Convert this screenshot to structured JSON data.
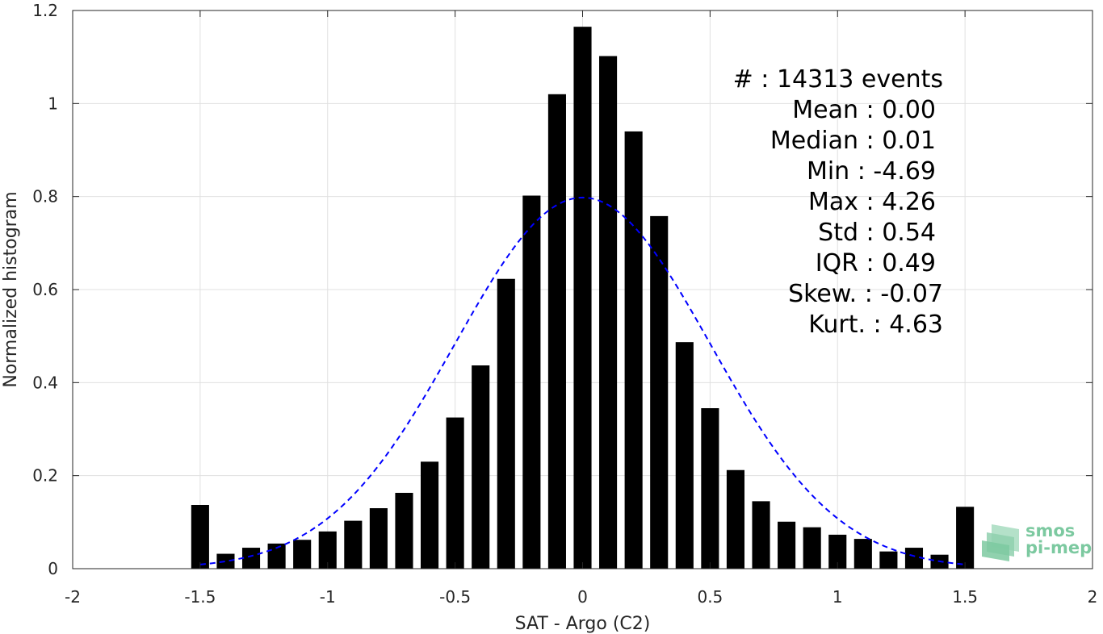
{
  "chart_data": {
    "type": "bar",
    "xlabel": "SAT - Argo (C2)",
    "ylabel": "Normalized histogram",
    "xlim": [
      -2,
      2
    ],
    "ylim": [
      0,
      1.2
    ],
    "xticks": [
      "-2",
      "-1.5",
      "-1",
      "-0.5",
      "0",
      "0.5",
      "1",
      "1.5",
      "2"
    ],
    "yticks": [
      "0",
      "0.2",
      "0.4",
      "0.6",
      "0.8",
      "1",
      "1.2"
    ],
    "grid": true,
    "bar_color": "#000000",
    "bins": {
      "x": [
        -1.5,
        -1.4,
        -1.3,
        -1.2,
        -1.1,
        -1.0,
        -0.9,
        -0.8,
        -0.7,
        -0.6,
        -0.5,
        -0.4,
        -0.3,
        -0.2,
        -0.1,
        0.0,
        0.1,
        0.2,
        0.3,
        0.4,
        0.5,
        0.6,
        0.7,
        0.8,
        0.9,
        1.0,
        1.1,
        1.2,
        1.3,
        1.4,
        1.5
      ],
      "values": [
        0.137,
        0.032,
        0.045,
        0.054,
        0.062,
        0.08,
        0.103,
        0.13,
        0.163,
        0.23,
        0.325,
        0.437,
        0.623,
        0.802,
        1.02,
        1.165,
        1.102,
        0.94,
        0.758,
        0.487,
        0.345,
        0.212,
        0.145,
        0.101,
        0.089,
        0.073,
        0.064,
        0.037,
        0.045,
        0.03,
        0.133
      ]
    },
    "fit_curve": {
      "type": "gaussian",
      "color": "#0000ff",
      "style": "dashed",
      "mean": 0.0,
      "std": 0.5,
      "x_range": [
        -1.5,
        1.5
      ]
    },
    "annotation_lines": [
      "#  : 14313 events",
      "Mean : 0.00",
      "Median : 0.01",
      "Min : -4.69",
      "Max : 4.26",
      "Std : 0.54",
      "IQR : 0.49",
      "Skew. : -0.07",
      "Kurt. : 4.63"
    ]
  },
  "logo": {
    "line1": "smos",
    "line2": "pi-mep",
    "color": "#7cc9a0"
  }
}
